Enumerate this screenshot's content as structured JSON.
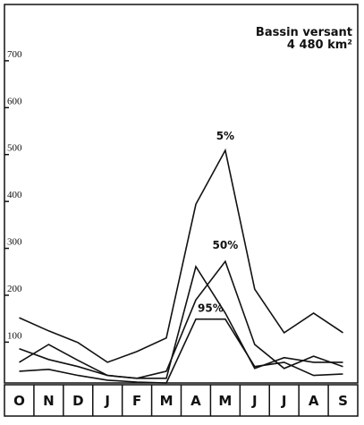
{
  "chart_data": {
    "type": "line",
    "annotation": [
      "Bassin versant",
      "4 480 km²"
    ],
    "categories": [
      "O",
      "N",
      "D",
      "J",
      "F",
      "M",
      "A",
      "M",
      "J",
      "J",
      "A",
      "S"
    ],
    "ylim": [
      13,
      820
    ],
    "yticks": [
      100,
      200,
      300,
      400,
      500,
      600,
      700
    ],
    "color": "#111111",
    "series": [
      {
        "name": "5%",
        "values": [
          152,
          124,
          99,
          57,
          80,
          109,
          394,
          509,
          213,
          120,
          162,
          120
        ]
      },
      {
        "name": "50%",
        "values": [
          57,
          95,
          61,
          29,
          23,
          38,
          190,
          272,
          95,
          44,
          70,
          48
        ]
      },
      {
        "name": "95%",
        "values": [
          38,
          42,
          29,
          19,
          15,
          13,
          149,
          149,
          48,
          57,
          29,
          32
        ]
      },
      {
        "values": [
          86,
          63,
          48,
          29,
          23,
          23,
          261,
          162,
          44,
          67,
          57,
          57
        ]
      }
    ]
  }
}
